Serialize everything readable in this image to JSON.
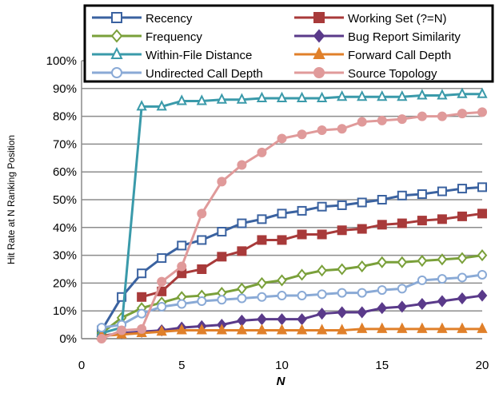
{
  "chart_data": {
    "type": "line",
    "title": "",
    "xlabel": "N",
    "ylabel": "Hit Rate at N Ranking Position",
    "xlim": [
      0,
      20
    ],
    "ylim": [
      0,
      100
    ],
    "xticks": [
      "0",
      "5",
      "10",
      "15",
      "20"
    ],
    "yticks": [
      "0%",
      "10%",
      "20%",
      "30%",
      "40%",
      "50%",
      "60%",
      "70%",
      "80%",
      "90%",
      "100%"
    ],
    "grid": "horizontal",
    "legend_position": "top",
    "legend_columns": 2,
    "series": [
      {
        "name": "Recency",
        "color": "#3a62a0",
        "marker": "square-open",
        "x": [
          1,
          2,
          3,
          4,
          5,
          6,
          7,
          8,
          9,
          10,
          11,
          12,
          13,
          14,
          15,
          16,
          17,
          18,
          19,
          20
        ],
        "values": [
          3,
          15,
          23.5,
          29,
          33.5,
          35.5,
          38.5,
          41.5,
          43,
          45,
          46,
          47.5,
          48,
          49,
          50,
          51.5,
          52,
          53,
          54,
          54.5
        ]
      },
      {
        "name": "Working Set (?=N)",
        "color": "#a83a3a",
        "marker": "square-filled",
        "x": [
          3,
          4,
          5,
          6,
          7,
          8,
          9,
          10,
          11,
          12,
          13,
          14,
          15,
          16,
          17,
          18,
          19,
          20
        ],
        "values": [
          15,
          17,
          23.5,
          25,
          29.5,
          31.5,
          35.5,
          35.5,
          37.5,
          37.5,
          39,
          39.5,
          41,
          41.5,
          42.5,
          43,
          44,
          45
        ]
      },
      {
        "name": "Frequency",
        "color": "#7aa03a",
        "marker": "diamond-open",
        "x": [
          1,
          2,
          3,
          4,
          5,
          6,
          7,
          8,
          9,
          10,
          11,
          12,
          13,
          14,
          15,
          16,
          17,
          18,
          19,
          20
        ],
        "values": [
          2,
          7.5,
          11,
          13,
          15,
          15.5,
          16.5,
          18,
          20,
          21,
          23,
          24.5,
          25,
          26,
          27.5,
          27.5,
          28,
          28.5,
          29,
          30
        ]
      },
      {
        "name": "Bug Report Similarity",
        "color": "#5a3a8a",
        "marker": "diamond-filled",
        "x": [
          1,
          2,
          3,
          4,
          5,
          6,
          7,
          8,
          9,
          10,
          11,
          12,
          13,
          14,
          15,
          16,
          17,
          18,
          19,
          20
        ],
        "values": [
          1,
          2,
          2.5,
          3,
          4,
          4.5,
          5,
          6.5,
          7,
          7,
          7,
          9,
          9.5,
          9.5,
          11,
          11.5,
          12.5,
          13.5,
          14.5,
          15.5
        ]
      },
      {
        "name": "Within-File Distance",
        "color": "#3a9aaa",
        "marker": "triangle-open",
        "x": [
          1,
          2,
          3,
          4,
          5,
          6,
          7,
          8,
          9,
          10,
          11,
          12,
          13,
          14,
          15,
          16,
          17,
          18,
          19,
          20
        ],
        "values": [
          2,
          4,
          83.5,
          83.5,
          85.5,
          85.5,
          86,
          86,
          86.5,
          86.5,
          86.5,
          86.5,
          87,
          87,
          87,
          87,
          87.5,
          87.5,
          88,
          88
        ]
      },
      {
        "name": "Forward Call Depth",
        "color": "#e0802a",
        "marker": "triangle-filled",
        "x": [
          1,
          2,
          3,
          4,
          5,
          6,
          7,
          8,
          9,
          10,
          11,
          12,
          13,
          14,
          15,
          16,
          17,
          18,
          19,
          20
        ],
        "values": [
          1,
          1.5,
          2,
          2.5,
          3,
          3,
          3,
          3,
          3,
          3,
          3,
          3,
          3,
          3.5,
          3.5,
          3.5,
          3.5,
          3.5,
          3.5,
          3.5
        ]
      },
      {
        "name": "Undirected Call Depth",
        "color": "#8aaad6",
        "marker": "circle-open",
        "x": [
          1,
          2,
          3,
          4,
          5,
          6,
          7,
          8,
          9,
          10,
          11,
          12,
          13,
          14,
          15,
          16,
          17,
          18,
          19,
          20
        ],
        "values": [
          4,
          5,
          9,
          11.5,
          12.5,
          13.5,
          14,
          14.5,
          15,
          15.5,
          15.5,
          16,
          16.5,
          16.5,
          17.5,
          18,
          21,
          21.5,
          22,
          23
        ]
      },
      {
        "name": "Source Topology",
        "color": "#e09a9a",
        "marker": "circle-filled",
        "x": [
          1,
          2,
          3,
          4,
          5,
          6,
          7,
          8,
          9,
          10,
          11,
          12,
          13,
          14,
          15,
          16,
          17,
          18,
          19,
          20
        ],
        "values": [
          0,
          3,
          3.5,
          20.5,
          26,
          45,
          56.5,
          62.5,
          67,
          72,
          73.5,
          75,
          75.5,
          78,
          78.5,
          79,
          80,
          80,
          81,
          81.5
        ]
      }
    ]
  }
}
